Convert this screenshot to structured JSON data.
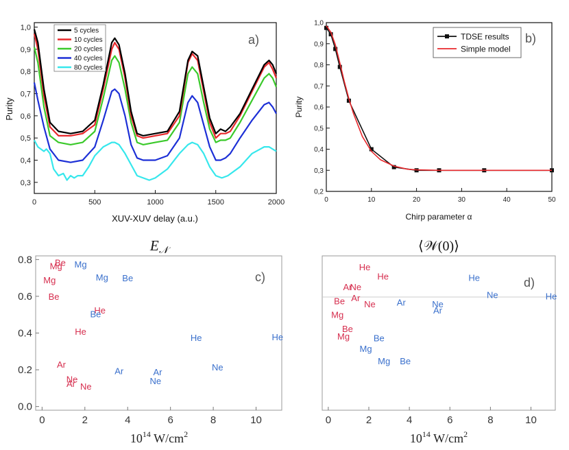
{
  "colors": {
    "red": "#d62e4e",
    "blue": "#3a70cc"
  },
  "chart_data": [
    {
      "id": "a",
      "type": "line",
      "panel_label": "a)",
      "xlabel": "XUV-XUV delay (a.u.)",
      "ylabel": "Purity",
      "xlim": [
        0,
        2000
      ],
      "ylim": [
        0.25,
        1.02
      ],
      "xticks": [
        "0",
        "500",
        "1000",
        "1500",
        "2000"
      ],
      "yticks": [
        "0,3",
        "0,4",
        "0,5",
        "0,6",
        "0,7",
        "0,8",
        "0,9",
        "1,0"
      ],
      "legend_position": "top-left",
      "series": [
        {
          "name": "5 cycles",
          "color": "#000000",
          "x": [
            0,
            30,
            80,
            130,
            200,
            300,
            400,
            500,
            570,
            640,
            665,
            700,
            750,
            800,
            850,
            900,
            1000,
            1100,
            1200,
            1270,
            1305,
            1350,
            1400,
            1450,
            1500,
            1540,
            1580,
            1620,
            1700,
            1800,
            1900,
            1940,
            1970,
            2000
          ],
          "y": [
            0.99,
            0.93,
            0.72,
            0.57,
            0.53,
            0.52,
            0.53,
            0.58,
            0.74,
            0.93,
            0.95,
            0.92,
            0.79,
            0.62,
            0.52,
            0.51,
            0.52,
            0.53,
            0.62,
            0.85,
            0.89,
            0.87,
            0.73,
            0.59,
            0.52,
            0.54,
            0.53,
            0.55,
            0.61,
            0.72,
            0.83,
            0.85,
            0.83,
            0.79
          ]
        },
        {
          "name": "10 cycles",
          "color": "#e8282c",
          "x": [
            0,
            30,
            80,
            130,
            200,
            300,
            400,
            500,
            570,
            640,
            665,
            700,
            750,
            800,
            850,
            900,
            1000,
            1100,
            1200,
            1270,
            1305,
            1350,
            1400,
            1450,
            1500,
            1540,
            1580,
            1620,
            1700,
            1800,
            1900,
            1940,
            1970,
            2000
          ],
          "y": [
            0.97,
            0.9,
            0.69,
            0.55,
            0.51,
            0.51,
            0.52,
            0.56,
            0.72,
            0.9,
            0.93,
            0.9,
            0.77,
            0.6,
            0.51,
            0.5,
            0.51,
            0.52,
            0.6,
            0.84,
            0.88,
            0.85,
            0.71,
            0.57,
            0.5,
            0.52,
            0.52,
            0.53,
            0.6,
            0.71,
            0.82,
            0.84,
            0.81,
            0.77
          ]
        },
        {
          "name": "20 cycles",
          "color": "#3ac92a",
          "x": [
            0,
            30,
            80,
            130,
            200,
            300,
            400,
            500,
            570,
            640,
            665,
            700,
            750,
            800,
            850,
            900,
            1000,
            1100,
            1200,
            1270,
            1305,
            1350,
            1400,
            1450,
            1500,
            1540,
            1580,
            1620,
            1700,
            1800,
            1900,
            1940,
            1970,
            2000
          ],
          "y": [
            0.91,
            0.84,
            0.64,
            0.51,
            0.48,
            0.47,
            0.48,
            0.53,
            0.68,
            0.85,
            0.87,
            0.84,
            0.72,
            0.57,
            0.48,
            0.47,
            0.48,
            0.49,
            0.57,
            0.79,
            0.82,
            0.79,
            0.66,
            0.54,
            0.48,
            0.49,
            0.49,
            0.5,
            0.57,
            0.67,
            0.77,
            0.79,
            0.77,
            0.73
          ]
        },
        {
          "name": "40 cycles",
          "color": "#1c2fd6",
          "x": [
            0,
            30,
            80,
            130,
            200,
            300,
            400,
            500,
            570,
            640,
            665,
            700,
            750,
            800,
            850,
            900,
            1000,
            1100,
            1200,
            1270,
            1305,
            1350,
            1400,
            1450,
            1500,
            1540,
            1580,
            1620,
            1700,
            1800,
            1900,
            1940,
            1970,
            2000
          ],
          "y": [
            0.75,
            0.67,
            0.55,
            0.45,
            0.4,
            0.39,
            0.4,
            0.46,
            0.58,
            0.71,
            0.72,
            0.7,
            0.6,
            0.47,
            0.41,
            0.4,
            0.4,
            0.42,
            0.5,
            0.66,
            0.69,
            0.66,
            0.56,
            0.46,
            0.4,
            0.4,
            0.41,
            0.43,
            0.5,
            0.58,
            0.65,
            0.66,
            0.64,
            0.61
          ]
        },
        {
          "name": "80 cycles",
          "color": "#36e7ec",
          "x": [
            0,
            30,
            80,
            100,
            130,
            160,
            200,
            240,
            270,
            300,
            330,
            360,
            400,
            450,
            500,
            570,
            640,
            665,
            700,
            750,
            800,
            850,
            900,
            950,
            1000,
            1100,
            1200,
            1270,
            1305,
            1350,
            1400,
            1450,
            1500,
            1550,
            1600,
            1700,
            1800,
            1900,
            1940,
            1970,
            2000
          ],
          "y": [
            0.49,
            0.46,
            0.44,
            0.45,
            0.43,
            0.36,
            0.33,
            0.34,
            0.31,
            0.33,
            0.32,
            0.33,
            0.33,
            0.37,
            0.42,
            0.46,
            0.48,
            0.48,
            0.47,
            0.43,
            0.38,
            0.33,
            0.32,
            0.31,
            0.32,
            0.36,
            0.43,
            0.47,
            0.48,
            0.47,
            0.43,
            0.37,
            0.33,
            0.32,
            0.33,
            0.37,
            0.43,
            0.46,
            0.46,
            0.45,
            0.44
          ]
        }
      ]
    },
    {
      "id": "b",
      "type": "line",
      "panel_label": "b)",
      "xlabel": "Chirp parameter α",
      "ylabel": "Purity",
      "xlim": [
        0,
        50
      ],
      "ylim": [
        0.2,
        1.0
      ],
      "xticks": [
        "0",
        "10",
        "20",
        "30",
        "40",
        "50"
      ],
      "yticks": [
        "0,2",
        "0,3",
        "0,4",
        "0,5",
        "0,6",
        "0,7",
        "0,8",
        "0,9",
        "1,0"
      ],
      "legend_position": "top-right",
      "series": [
        {
          "name": "TDSE results",
          "color": "#111111",
          "markers": true,
          "x": [
            0,
            1,
            2,
            3,
            5,
            10,
            15,
            20,
            25,
            35,
            50
          ],
          "y": [
            0.975,
            0.945,
            0.875,
            0.79,
            0.63,
            0.4,
            0.315,
            0.3,
            0.3,
            0.3,
            0.3
          ]
        },
        {
          "name": "Simple model",
          "color": "#e8282c",
          "markers": false,
          "x": [
            0,
            1,
            2,
            3,
            4,
            5,
            6,
            8,
            10,
            12,
            15,
            18,
            20,
            25,
            30,
            40,
            50
          ],
          "y": [
            0.985,
            0.955,
            0.895,
            0.81,
            0.72,
            0.64,
            0.57,
            0.46,
            0.39,
            0.35,
            0.32,
            0.305,
            0.302,
            0.3,
            0.3,
            0.3,
            0.3
          ]
        }
      ]
    },
    {
      "id": "c",
      "type": "scatter",
      "panel_label": "c)",
      "title": "E_N",
      "xlabel": "10^14 W/cm^2",
      "xlim": [
        -0.3,
        11.2
      ],
      "ylim": [
        -0.02,
        0.82
      ],
      "xticks": [
        "0",
        "2",
        "4",
        "6",
        "8",
        "10"
      ],
      "yticks": [
        "0.0",
        "0.2",
        "0.4",
        "0.6",
        "0.8"
      ],
      "points": [
        {
          "label": "Be",
          "x": 0.85,
          "y": 0.785,
          "color": "red"
        },
        {
          "label": "Mg",
          "x": 0.65,
          "y": 0.765,
          "color": "red"
        },
        {
          "label": "Mg",
          "x": 0.35,
          "y": 0.69,
          "color": "red"
        },
        {
          "label": "Be",
          "x": 0.55,
          "y": 0.6,
          "color": "red"
        },
        {
          "label": "Mg",
          "x": 1.8,
          "y": 0.775,
          "color": "blue"
        },
        {
          "label": "Mg",
          "x": 2.8,
          "y": 0.705,
          "color": "blue"
        },
        {
          "label": "Be",
          "x": 4.0,
          "y": 0.7,
          "color": "blue"
        },
        {
          "label": "He",
          "x": 2.7,
          "y": 0.525,
          "color": "red"
        },
        {
          "label": "Be",
          "x": 2.5,
          "y": 0.505,
          "color": "blue"
        },
        {
          "label": "He",
          "x": 1.8,
          "y": 0.41,
          "color": "red"
        },
        {
          "label": "He",
          "x": 7.2,
          "y": 0.375,
          "color": "blue"
        },
        {
          "label": "He",
          "x": 11.0,
          "y": 0.38,
          "color": "blue"
        },
        {
          "label": "Ar",
          "x": 0.9,
          "y": 0.23,
          "color": "red"
        },
        {
          "label": "Ne",
          "x": 1.4,
          "y": 0.15,
          "color": "red"
        },
        {
          "label": "Ar",
          "x": 1.35,
          "y": 0.125,
          "color": "red"
        },
        {
          "label": "Ne",
          "x": 2.05,
          "y": 0.11,
          "color": "red"
        },
        {
          "label": "Ar",
          "x": 3.6,
          "y": 0.195,
          "color": "blue"
        },
        {
          "label": "Ar",
          "x": 5.4,
          "y": 0.19,
          "color": "blue"
        },
        {
          "label": "Ne",
          "x": 5.3,
          "y": 0.14,
          "color": "blue"
        },
        {
          "label": "Ne",
          "x": 8.2,
          "y": 0.215,
          "color": "blue"
        }
      ]
    },
    {
      "id": "d",
      "type": "scatter",
      "panel_label": "d)",
      "title": "⟨𝒲(0)⟩",
      "xlabel": "10^14 W/cm^2",
      "xlim": [
        -0.3,
        11.2
      ],
      "ylim": [
        0,
        1
      ],
      "xticks": [
        "0",
        "2",
        "4",
        "6",
        "8",
        "10"
      ],
      "yticks": [],
      "points": [
        {
          "label": "He",
          "x": 1.8,
          "y": 0.93,
          "color": "red"
        },
        {
          "label": "He",
          "x": 2.7,
          "y": 0.87,
          "color": "red"
        },
        {
          "label": "Ar",
          "x": 0.95,
          "y": 0.8,
          "color": "red"
        },
        {
          "label": "Ne",
          "x": 1.35,
          "y": 0.8,
          "color": "red"
        },
        {
          "label": "Ar",
          "x": 1.35,
          "y": 0.73,
          "color": "red"
        },
        {
          "label": "Be",
          "x": 0.55,
          "y": 0.71,
          "color": "red"
        },
        {
          "label": "Ne",
          "x": 2.05,
          "y": 0.69,
          "color": "red"
        },
        {
          "label": "Mg",
          "x": 0.45,
          "y": 0.62,
          "color": "red"
        },
        {
          "label": "Be",
          "x": 0.95,
          "y": 0.53,
          "color": "red"
        },
        {
          "label": "Mg",
          "x": 0.75,
          "y": 0.48,
          "color": "red"
        },
        {
          "label": "He",
          "x": 7.2,
          "y": 0.86,
          "color": "blue"
        },
        {
          "label": "Ne",
          "x": 8.1,
          "y": 0.75,
          "color": "blue"
        },
        {
          "label": "He",
          "x": 11.0,
          "y": 0.74,
          "color": "blue"
        },
        {
          "label": "Ar",
          "x": 3.6,
          "y": 0.7,
          "color": "blue"
        },
        {
          "label": "Ne",
          "x": 5.4,
          "y": 0.69,
          "color": "blue"
        },
        {
          "label": "Ar",
          "x": 5.4,
          "y": 0.65,
          "color": "blue"
        },
        {
          "label": "Be",
          "x": 2.5,
          "y": 0.47,
          "color": "blue"
        },
        {
          "label": "Mg",
          "x": 1.85,
          "y": 0.4,
          "color": "blue"
        },
        {
          "label": "Mg",
          "x": 2.75,
          "y": 0.32,
          "color": "blue"
        },
        {
          "label": "Be",
          "x": 3.8,
          "y": 0.32,
          "color": "blue"
        }
      ]
    }
  ]
}
